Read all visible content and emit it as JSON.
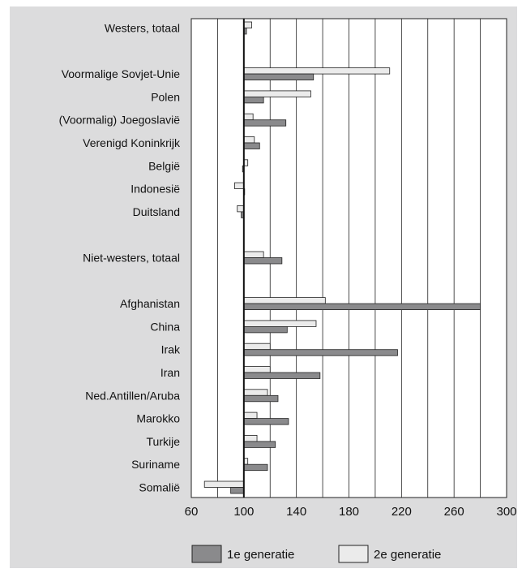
{
  "chart_data": {
    "type": "bar",
    "orientation": "horizontal",
    "baseline": 100,
    "xlim": [
      60,
      300
    ],
    "xticks": [
      60,
      100,
      140,
      180,
      220,
      260,
      300
    ],
    "grid": true,
    "legend_position": "bottom",
    "categories": [
      "Westers, totaal",
      "",
      "Voormalige Sovjet-Unie",
      "Polen",
      "(Voormalig) Joegoslavië",
      "Verenigd Koninkrijk",
      "België",
      "Indonesië",
      "Duitsland",
      "",
      "Niet-westers, totaal",
      "",
      "Afghanistan",
      "China",
      "Irak",
      "Iran",
      "Ned.Antillen/Aruba",
      "Marokko",
      "Turkije",
      "Suriname",
      "Somalië"
    ],
    "series": [
      {
        "name": "1e generatie",
        "color": "#8a8a8c",
        "values": [
          102,
          null,
          153,
          115,
          132,
          112,
          99,
          100,
          98,
          null,
          129,
          null,
          280,
          133,
          217,
          158,
          126,
          134,
          124,
          118,
          90
        ]
      },
      {
        "name": "2e generatie",
        "color": "#ebebeb",
        "values": [
          106,
          null,
          211,
          151,
          107,
          108,
          103,
          93,
          95,
          null,
          115,
          null,
          162,
          155,
          120,
          120,
          118,
          110,
          110,
          103,
          70
        ]
      }
    ]
  }
}
